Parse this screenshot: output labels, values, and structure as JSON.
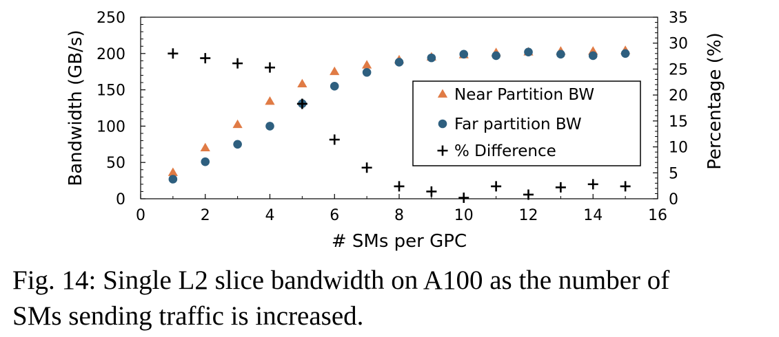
{
  "chart_data": {
    "type": "scatter",
    "xlabel": "# SMs per GPC",
    "ylabel": "Bandwidth (GB/s)",
    "y2label": "Percentage (%)",
    "xlim": [
      0,
      16
    ],
    "ylim": [
      0,
      250
    ],
    "y2lim": [
      0,
      35
    ],
    "x_ticks": [
      0,
      2,
      4,
      6,
      8,
      10,
      12,
      14,
      16
    ],
    "y_ticks": [
      0,
      50,
      100,
      150,
      200,
      250
    ],
    "y2_ticks": [
      0,
      5,
      10,
      15,
      20,
      25,
      30,
      35
    ],
    "legend_position": "right",
    "series": [
      {
        "name": "Near Partition BW",
        "axis": "left",
        "marker": "triangle",
        "color": "#e07b45",
        "x": [
          1,
          2,
          3,
          4,
          5,
          6,
          7,
          8,
          9,
          10,
          11,
          12,
          13,
          14,
          15
        ],
        "y": [
          36,
          70,
          102,
          134,
          158,
          175,
          184,
          191,
          195,
          198,
          201,
          202,
          203,
          203,
          204
        ]
      },
      {
        "name": "Far partition BW",
        "axis": "left",
        "marker": "circle",
        "color": "#2e5f7f",
        "x": [
          1,
          2,
          3,
          4,
          5,
          6,
          7,
          8,
          9,
          10,
          11,
          12,
          13,
          14,
          15
        ],
        "y": [
          27,
          51,
          75,
          100,
          131,
          155,
          174,
          188,
          194,
          199,
          197,
          202,
          199,
          197,
          200
        ]
      },
      {
        "name": "% Difference",
        "axis": "right",
        "marker": "plus",
        "color": "#000000",
        "x": [
          1,
          2,
          3,
          4,
          5,
          6,
          7,
          8,
          9,
          10,
          11,
          12,
          13,
          14,
          15
        ],
        "y": [
          28.0,
          27.1,
          26.1,
          25.3,
          18.3,
          11.4,
          6.0,
          2.4,
          1.4,
          0.2,
          2.4,
          0.8,
          2.2,
          2.8,
          2.4
        ]
      }
    ]
  },
  "caption": {
    "line1": "Fig. 14: Single L2 slice bandwidth on A100 as the number of",
    "line2": "SMs sending traffic is increased."
  }
}
